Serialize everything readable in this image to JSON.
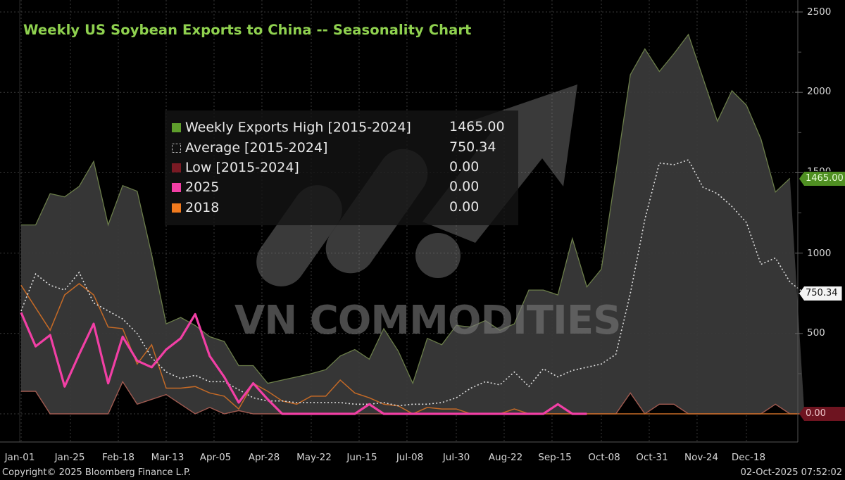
{
  "header": {
    "title": "Weekly US Soybean Exports to China -- Seasonality Chart"
  },
  "legend": {
    "items": [
      {
        "label": "Weekly Exports High [2015-2024]",
        "value": "1465.00",
        "color": "#5e9e2c",
        "style": "solid"
      },
      {
        "label": "Average  [2015-2024]",
        "value": "750.34",
        "color": "#d8d8d8",
        "style": "dotted"
      },
      {
        "label": "Low  [2015-2024]",
        "value": "0.00",
        "color": "#7a1a24",
        "style": "solid"
      },
      {
        "label": "2025",
        "value": "0.00",
        "color": "#f23fa5",
        "style": "solid"
      },
      {
        "label": "2018",
        "value": "0.00",
        "color": "#f07a1e",
        "style": "solid"
      }
    ]
  },
  "y_axis": {
    "ticks": [
      "2500",
      "2000",
      "1500",
      "1000",
      "500"
    ],
    "tags": [
      {
        "label": "1465.00",
        "bg": "#4f8f22",
        "fg": "#e8ffd8",
        "value": 1465
      },
      {
        "label": "750.34",
        "bg": "#f4f4f4",
        "fg": "#111111",
        "value": 750.34
      },
      {
        "label": "0.00",
        "bg": "#6e1420",
        "fg": "#f0c8cc",
        "value": 0
      }
    ]
  },
  "x_axis": {
    "ticks": [
      "Jan-01",
      "Jan-25",
      "Feb-18",
      "Mar-13",
      "Apr-05",
      "Apr-28",
      "May-22",
      "Jun-15",
      "Jul-08",
      "Jul-30",
      "Aug-22",
      "Sep-15",
      "Oct-08",
      "Oct-31",
      "Nov-24",
      "Dec-18"
    ]
  },
  "footer": {
    "copyright": "Copyright© 2025 Bloomberg Finance L.P.",
    "timestamp": "02-Oct-2025 07:52:02"
  },
  "watermark": {
    "text": "VN COMMODITIES"
  },
  "colors": {
    "background": "#000000",
    "band_fill": "#3a3a3a",
    "high_line": "#6b7d4a",
    "title": "#8fd14f",
    "grid": "#3c3c3c"
  },
  "chart_data": {
    "type": "line",
    "title": "Weekly US Soybean Exports to China -- Seasonality Chart",
    "xlabel": "",
    "ylabel": "",
    "ylim": [
      0,
      2500
    ],
    "y_ticks": [
      500,
      1000,
      1500,
      2000,
      2500
    ],
    "grid": true,
    "legend_position": "upper-center",
    "x_tick_labels": [
      "Jan-01",
      "Jan-25",
      "Feb-18",
      "Mar-13",
      "Apr-05",
      "Apr-28",
      "May-22",
      "Jun-15",
      "Jul-08",
      "Jul-30",
      "Aug-22",
      "Sep-15",
      "Oct-08",
      "Oct-31",
      "Nov-24",
      "Dec-18"
    ],
    "x_week_index_of_ticks": [
      0,
      3.4,
      6.7,
      10,
      13.3,
      16.6,
      20,
      23.3,
      26.6,
      30,
      33.3,
      36.6,
      40,
      43.3,
      46.6,
      50
    ],
    "series": [
      {
        "name": "Weekly Exports High [2015-2024]",
        "type": "area-band-top",
        "last_value": 1465.0,
        "values": [
          1175,
          1175,
          1370,
          1350,
          1415,
          1570,
          1175,
          1420,
          1385,
          990,
          560,
          600,
          550,
          480,
          450,
          300,
          300,
          190,
          210,
          230,
          250,
          275,
          360,
          400,
          340,
          530,
          390,
          190,
          470,
          430,
          550,
          540,
          580,
          520,
          560,
          770,
          770,
          740,
          1090,
          790,
          900,
          1500,
          2110,
          2270,
          2130,
          2240,
          2360,
          2090,
          1820,
          2010,
          1920,
          1710,
          1380,
          1465
        ]
      },
      {
        "name": "Average [2015-2024]",
        "type": "dotted-line",
        "last_value": 750.34,
        "values": [
          640,
          870,
          800,
          770,
          880,
          690,
          640,
          590,
          500,
          350,
          260,
          220,
          240,
          200,
          200,
          150,
          100,
          80,
          80,
          70,
          70,
          70,
          70,
          60,
          60,
          70,
          50,
          60,
          60,
          70,
          100,
          160,
          200,
          180,
          260,
          170,
          280,
          230,
          270,
          290,
          310,
          370,
          750,
          1210,
          1560,
          1550,
          1580,
          1410,
          1370,
          1290,
          1190,
          930,
          970,
          820,
          750
        ]
      },
      {
        "name": "Low [2015-2024]",
        "type": "area-band-bottom",
        "last_value": 0.0,
        "values": [
          140,
          140,
          0,
          0,
          0,
          0,
          0,
          200,
          60,
          90,
          120,
          60,
          0,
          40,
          0,
          20,
          0,
          0,
          0,
          0,
          0,
          0,
          0,
          0,
          0,
          0,
          0,
          0,
          0,
          0,
          0,
          0,
          0,
          0,
          0,
          0,
          0,
          0,
          0,
          0,
          0,
          0,
          130,
          0,
          60,
          60,
          0,
          0,
          0,
          0,
          0,
          0,
          60,
          0,
          0
        ]
      },
      {
        "name": "2025",
        "type": "line",
        "last_value": 0.0,
        "values": [
          630,
          420,
          490,
          170,
          370,
          560,
          190,
          480,
          330,
          290,
          400,
          470,
          620,
          360,
          230,
          70,
          190,
          90,
          0,
          0,
          0,
          0,
          0,
          0,
          60,
          0,
          0,
          0,
          0,
          0,
          0,
          0,
          0,
          0,
          0,
          0,
          0,
          60,
          0,
          0
        ]
      },
      {
        "name": "2018",
        "type": "line",
        "last_value": 0.0,
        "values": [
          800,
          660,
          520,
          740,
          810,
          740,
          540,
          530,
          310,
          430,
          160,
          160,
          170,
          130,
          110,
          30,
          190,
          140,
          80,
          60,
          110,
          110,
          210,
          130,
          100,
          60,
          50,
          0,
          40,
          30,
          30,
          0,
          0,
          0,
          30,
          0,
          0,
          0,
          0,
          0,
          0,
          0,
          0,
          0,
          0,
          0,
          0,
          0,
          0,
          0,
          0,
          0,
          0,
          0,
          0
        ]
      }
    ]
  }
}
